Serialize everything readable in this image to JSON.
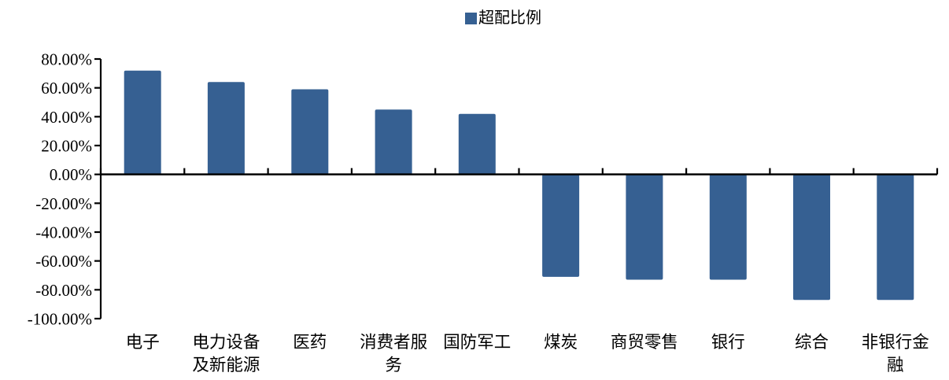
{
  "legend": {
    "label": "超配比例",
    "marker_color": "#366092"
  },
  "chart_data": {
    "type": "bar",
    "title": "",
    "xlabel": "",
    "ylabel": "",
    "categories": [
      "电子",
      "电力设备及新能源",
      "医药",
      "消费者服务",
      "国防军工",
      "煤炭",
      "商贸零售",
      "银行",
      "综合",
      "非银行金融"
    ],
    "category_display": [
      "电子",
      "电力设备\n及新能源",
      "医药",
      "消费者服\n务",
      "国防军工",
      "煤炭",
      "商贸零售",
      "银行",
      "综合",
      "非银行金\n融"
    ],
    "series": [
      {
        "name": "超配比例",
        "values": [
          72,
          64,
          59,
          45,
          42,
          -71,
          -73,
          -73,
          -87,
          -87
        ]
      }
    ],
    "unit": "%",
    "ylim": [
      -100,
      80
    ],
    "ytick_step": 20,
    "yticks": [
      80,
      60,
      40,
      20,
      0,
      -20,
      -40,
      -60,
      -80,
      -100
    ],
    "ytick_labels": [
      "80.00%",
      "60.00%",
      "40.00%",
      "20.00%",
      "0.00%",
      "-20.00%",
      "-40.00%",
      "-60.00%",
      "-80.00%",
      "-100.00%"
    ],
    "bar_color": "#366092",
    "axis_color": "#000000",
    "text_color": "#000000",
    "grid": false,
    "legend_position": "top-center"
  }
}
